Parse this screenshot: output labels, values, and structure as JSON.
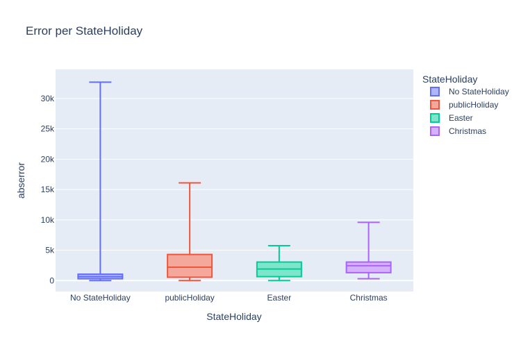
{
  "chart_data": {
    "type": "box",
    "title": "Error per StateHoliday",
    "xlabel": "StateHoliday",
    "ylabel": "abserror",
    "ylim": [
      -1800,
      34800
    ],
    "yticks": [
      {
        "value": 0,
        "label": "0"
      },
      {
        "value": 5000,
        "label": "5k"
      },
      {
        "value": 10000,
        "label": "10k"
      },
      {
        "value": 15000,
        "label": "15k"
      },
      {
        "value": 20000,
        "label": "20k"
      },
      {
        "value": 25000,
        "label": "25k"
      },
      {
        "value": 30000,
        "label": "30k"
      }
    ],
    "grid": true,
    "legend": {
      "title": "StateHoliday",
      "position": "right"
    },
    "series": [
      {
        "name": "No StateHoliday",
        "color": "#636efa",
        "fill": "#b1b6fc",
        "min": 0,
        "q1": 300,
        "median": 650,
        "q3": 1050,
        "max": 32700
      },
      {
        "name": "publicHoliday",
        "color": "#ef553b",
        "fill": "#f4a89b",
        "min": 0,
        "q1": 550,
        "median": 2200,
        "q3": 4300,
        "max": 16100
      },
      {
        "name": "Easter",
        "color": "#00cc96",
        "fill": "#7fe5ca",
        "min": 0,
        "q1": 650,
        "median": 1900,
        "q3": 3050,
        "max": 5750
      },
      {
        "name": "Christmas",
        "color": "#ab63fa",
        "fill": "#d5b1fc",
        "min": 300,
        "q1": 1300,
        "median": 2450,
        "q3": 3050,
        "max": 9600
      }
    ]
  }
}
